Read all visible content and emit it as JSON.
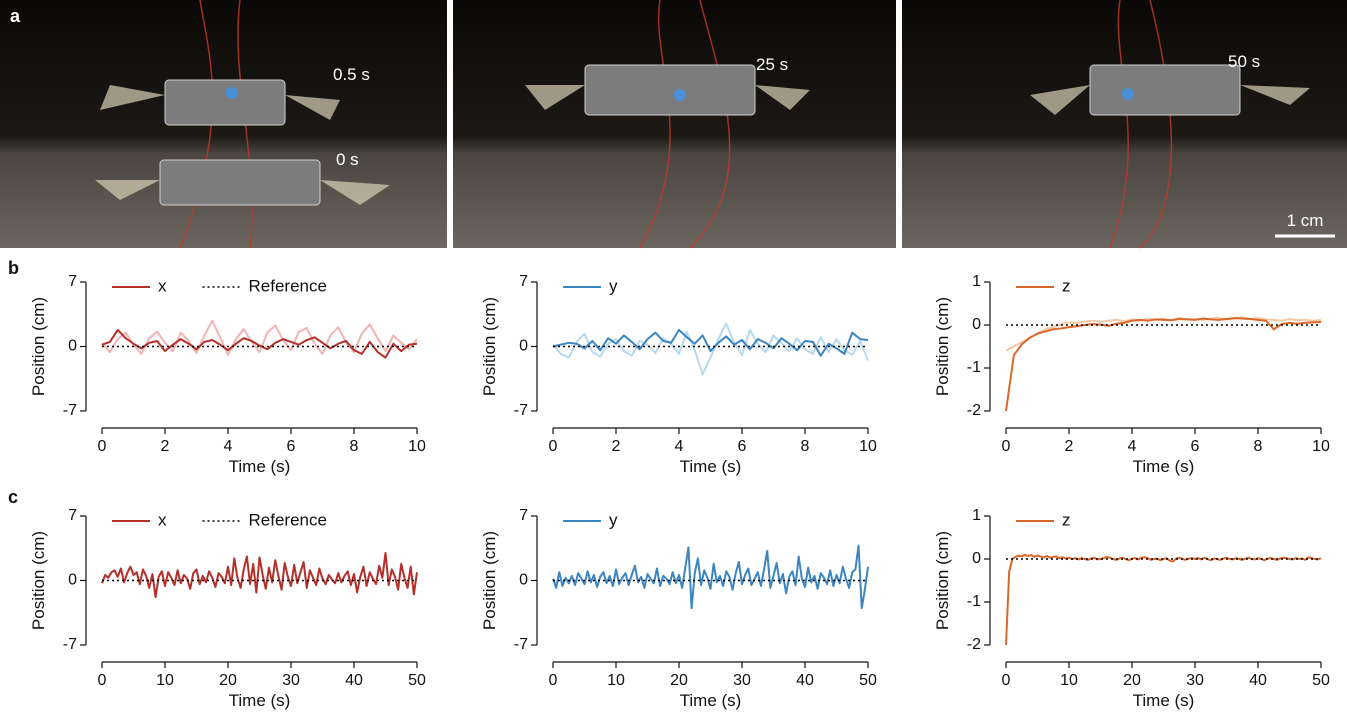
{
  "panel_labels": [
    "a",
    "b",
    "c"
  ],
  "photos": [
    {
      "labels": [
        "0.5 s",
        "0 s"
      ]
    },
    {
      "labels": [
        "25 s"
      ]
    },
    {
      "labels": [
        "50 s"
      ]
    }
  ],
  "scale_bar": "1 cm",
  "chart_data": [
    {
      "type": "line",
      "x_label": "Time (s)",
      "y_label": "Position (cm)",
      "x": [
        0,
        0.25,
        0.5,
        0.75,
        1,
        1.25,
        1.5,
        1.75,
        2,
        2.25,
        2.5,
        2.75,
        3,
        3.25,
        3.5,
        3.75,
        4,
        4.25,
        4.5,
        4.75,
        5,
        5.25,
        5.5,
        5.75,
        6,
        6.25,
        6.5,
        6.75,
        7,
        7.25,
        7.5,
        7.75,
        8,
        8.25,
        8.5,
        8.75,
        9,
        9.25,
        9.5,
        9.75,
        10
      ],
      "xlim": [
        0,
        10
      ],
      "xticks": [
        0,
        2,
        4,
        6,
        8,
        10
      ],
      "ylim": [
        -7,
        7
      ],
      "yticks": [
        -7,
        0,
        7
      ],
      "series": [
        {
          "color": "#f2b3b3",
          "values": [
            0.3,
            -0.6,
            0.8,
            1.5,
            0.2,
            -0.8,
            0.9,
            1.6,
            0.4,
            -0.5,
            1.5,
            0.6,
            -0.7,
            1.2,
            2.8,
            1.0,
            -0.9,
            0.8,
            1.9,
            0.5,
            -0.6,
            1.5,
            2.3,
            0.7,
            -0.4,
            1.6,
            2.0,
            0.3,
            -0.8,
            1.2,
            2.1,
            0.4,
            -0.6,
            1.4,
            2.4,
            0.9,
            -0.5,
            1.2,
            0.4,
            -0.3,
            0.8
          ]
        },
        {
          "name": "x",
          "color": "#b5302a",
          "values": [
            0.2,
            0.5,
            1.8,
            0.9,
            0.3,
            -0.2,
            0.4,
            0.6,
            -0.5,
            0.2,
            0.8,
            0.3,
            -0.3,
            0.5,
            0.7,
            0.2,
            -0.4,
            0.3,
            0.9,
            0.6,
            0.1,
            -0.3,
            0.4,
            0.8,
            0.5,
            0.2,
            0.7,
            1.0,
            0.4,
            -0.2,
            0.3,
            0.6,
            -0.4,
            -0.8,
            0.5,
            -0.6,
            -1.2,
            0.3,
            -0.5,
            0.2,
            0.3
          ]
        },
        {
          "name": "Reference",
          "color": "#000000",
          "linestyle": "dotted",
          "x": [
            0,
            10
          ],
          "values": [
            0,
            0
          ]
        }
      ]
    },
    {
      "type": "line",
      "x_label": "Time (s)",
      "y_label": "Position (cm)",
      "x": [
        0,
        0.25,
        0.5,
        0.75,
        1,
        1.25,
        1.5,
        1.75,
        2,
        2.25,
        2.5,
        2.75,
        3,
        3.25,
        3.5,
        3.75,
        4,
        4.25,
        4.5,
        4.75,
        5,
        5.25,
        5.5,
        5.75,
        6,
        6.25,
        6.5,
        6.75,
        7,
        7.25,
        7.5,
        7.75,
        8,
        8.25,
        8.5,
        8.75,
        9,
        9.25,
        9.5,
        9.75,
        10
      ],
      "xlim": [
        0,
        10
      ],
      "xticks": [
        0,
        2,
        4,
        6,
        8,
        10
      ],
      "ylim": [
        -7,
        7
      ],
      "yticks": [
        -7,
        0,
        7
      ],
      "series": [
        {
          "color": "#b6d9ef",
          "values": [
            0.2,
            -0.8,
            -1.2,
            0.5,
            1.4,
            -0.6,
            -1.1,
            0.3,
            0.8,
            -0.5,
            -1.0,
            0.6,
            0.2,
            -0.7,
            0.9,
            0.3,
            -0.8,
            1.6,
            -0.4,
            -3.0,
            -1.2,
            0.8,
            2.5,
            0.4,
            -0.9,
            1.8,
            0.3,
            -0.6,
            1.2,
            0.4,
            -0.5,
            0.9,
            -0.3,
            -0.8,
            1.0,
            -0.6,
            0.8,
            -0.4,
            -0.9,
            0.6,
            -1.5
          ]
        },
        {
          "name": "y",
          "color": "#3b86c0",
          "values": [
            0,
            0.2,
            0.4,
            0.3,
            -0.2,
            0.6,
            -0.4,
            0.9,
            0.3,
            1.2,
            0.5,
            -0.3,
            0.8,
            1.5,
            0.6,
            0.4,
            1.8,
            1.0,
            0.3,
            1.2,
            -0.5,
            0.4,
            1.1,
            0.2,
            0.7,
            -0.3,
            0.8,
            0.4,
            -0.2,
            0.9,
            0.3,
            -0.4,
            0.6,
            0.5,
            -1.0,
            0.3,
            -0.2,
            -0.8,
            1.5,
            0.8,
            0.7
          ]
        },
        {
          "color": "#000000",
          "linestyle": "dotted",
          "x": [
            0,
            10
          ],
          "values": [
            0,
            0
          ]
        }
      ]
    },
    {
      "type": "line",
      "x_label": "Time (s)",
      "y_label": "Position (cm)",
      "x": [
        0,
        0.25,
        0.5,
        0.75,
        1,
        1.25,
        1.5,
        1.75,
        2,
        2.25,
        2.5,
        2.75,
        3,
        3.25,
        3.5,
        3.75,
        4,
        4.25,
        4.5,
        4.75,
        5,
        5.25,
        5.5,
        5.75,
        6,
        6.25,
        6.5,
        6.75,
        7,
        7.25,
        7.5,
        7.75,
        8,
        8.25,
        8.5,
        8.75,
        9,
        9.25,
        9.5,
        9.75,
        10
      ],
      "xlim": [
        0,
        10
      ],
      "xticks": [
        0,
        2,
        4,
        6,
        8,
        10
      ],
      "ylim": [
        -2,
        1
      ],
      "yticks": [
        -2,
        -1,
        0,
        1
      ],
      "series": [
        {
          "color": "#f5c8a3",
          "values": [
            -0.6,
            -0.5,
            -0.4,
            -0.3,
            -0.2,
            -0.1,
            -0.05,
            0.02,
            0.06,
            0.05,
            0.08,
            0.1,
            0.07,
            0.1,
            0.12,
            0.09,
            0.13,
            0.1,
            0.14,
            0.12,
            0.15,
            0.11,
            0.16,
            0.13,
            0.14,
            0.12,
            0.15,
            0.17,
            0.13,
            0.15,
            0.18,
            0.14,
            0.16,
            0.13,
            0.12,
            0.1,
            0.14,
            0.11,
            0.12,
            0.1,
            0.12
          ]
        },
        {
          "name": "z",
          "color": "#d9682a",
          "values": [
            -2.0,
            -0.7,
            -0.45,
            -0.3,
            -0.2,
            -0.15,
            -0.1,
            -0.08,
            -0.05,
            -0.03,
            0,
            0.02,
            0.01,
            -0.02,
            0.03,
            0.05,
            0.1,
            0.12,
            0.1,
            0.13,
            0.12,
            0.11,
            0.14,
            0.13,
            0.12,
            0.15,
            0.13,
            0.12,
            0.14,
            0.16,
            0.15,
            0.14,
            0.12,
            0.1,
            -0.1,
            0.02,
            0.05,
            0.03,
            0.05,
            0.06,
            0.07
          ]
        },
        {
          "color": "#000000",
          "linestyle": "dotted",
          "x": [
            0,
            10
          ],
          "values": [
            0,
            0
          ]
        }
      ]
    },
    {
      "type": "line",
      "x_label": "Time (s)",
      "y_label": "Position (cm)",
      "x": [
        0,
        0.5,
        1,
        1.5,
        2,
        2.5,
        3,
        3.5,
        4,
        4.5,
        5,
        5.5,
        6,
        6.5,
        7,
        7.5,
        8,
        8.5,
        9,
        9.5,
        10,
        10.5,
        11,
        11.5,
        12,
        12.5,
        13,
        13.5,
        14,
        14.5,
        15,
        15.5,
        16,
        16.5,
        17,
        17.5,
        18,
        18.5,
        19,
        19.5,
        20,
        20.5,
        21,
        21.5,
        22,
        22.5,
        23,
        23.5,
        24,
        24.5,
        25,
        25.5,
        26,
        26.5,
        27,
        27.5,
        28,
        28.5,
        29,
        29.5,
        30,
        30.5,
        31,
        31.5,
        32,
        32.5,
        33,
        33.5,
        34,
        34.5,
        35,
        35.5,
        36,
        36.5,
        37,
        37.5,
        38,
        38.5,
        39,
        39.5,
        40,
        40.5,
        41,
        41.5,
        42,
        42.5,
        43,
        43.5,
        44,
        44.5,
        45,
        45.5,
        46,
        46.5,
        47,
        47.5,
        48,
        48.5,
        49,
        49.5,
        50
      ],
      "xlim": [
        0,
        50
      ],
      "xticks": [
        0,
        10,
        20,
        30,
        40,
        50
      ],
      "ylim": [
        -7,
        7
      ],
      "yticks": [
        -7,
        0,
        7
      ],
      "series": [
        {
          "name": "x",
          "color": "#b5302a",
          "values": [
            -0.3,
            0.6,
            0.3,
            0.9,
            1.1,
            0.4,
            1.3,
            -0.2,
            0.8,
            1.5,
            0.6,
            0.9,
            -0.4,
            1.2,
            0.5,
            -0.8,
            0.7,
            -1.8,
            0.4,
            1.0,
            -0.6,
            0.9,
            0.3,
            -0.5,
            1.1,
            -0.3,
            0.6,
            0.2,
            -0.9,
            0.8,
            1.2,
            -0.4,
            0.5,
            -0.2,
            1.0,
            0.3,
            -0.7,
            0.8,
            0.4,
            -0.3,
            1.5,
            -0.5,
            2.4,
            0.3,
            -0.8,
            1.2,
            2.6,
            -0.4,
            1.8,
            -1.3,
            2.5,
            0.6,
            -0.9,
            1.4,
            -0.2,
            2.2,
            0.5,
            -1.0,
            1.9,
            0.4,
            -0.6,
            1.7,
            -0.3,
            0.9,
            2.0,
            -0.8,
            1.1,
            0.3,
            -0.5,
            1.3,
            0.2,
            -0.4,
            0.6,
            0.1,
            -0.3,
            0.8,
            -0.2,
            0.5,
            1.0,
            -0.5,
            0.7,
            -1.3,
            0.4,
            1.5,
            -0.6,
            0.9,
            0.2,
            -0.4,
            1.6,
            0.3,
            3.0,
            -0.5,
            1.2,
            0.4,
            -1.0,
            1.8,
            0.3,
            -0.8,
            1.5,
            -1.5,
            0.9
          ]
        },
        {
          "name": "Reference",
          "color": "#000000",
          "linestyle": "dotted",
          "x": [
            0,
            50
          ],
          "values": [
            0,
            0
          ]
        }
      ]
    },
    {
      "type": "line",
      "x_label": "Time (s)",
      "y_label": "Position (cm)",
      "x": [
        0,
        0.5,
        1,
        1.5,
        2,
        2.5,
        3,
        3.5,
        4,
        4.5,
        5,
        5.5,
        6,
        6.5,
        7,
        7.5,
        8,
        8.5,
        9,
        9.5,
        10,
        10.5,
        11,
        11.5,
        12,
        12.5,
        13,
        13.5,
        14,
        14.5,
        15,
        15.5,
        16,
        16.5,
        17,
        17.5,
        18,
        18.5,
        19,
        19.5,
        20,
        20.5,
        21,
        21.5,
        22,
        22.5,
        23,
        23.5,
        24,
        24.5,
        25,
        25.5,
        26,
        26.5,
        27,
        27.5,
        28,
        28.5,
        29,
        29.5,
        30,
        30.5,
        31,
        31.5,
        32,
        32.5,
        33,
        33.5,
        34,
        34.5,
        35,
        35.5,
        36,
        36.5,
        37,
        37.5,
        38,
        38.5,
        39,
        39.5,
        40,
        40.5,
        41,
        41.5,
        42,
        42.5,
        43,
        43.5,
        44,
        44.5,
        45,
        45.5,
        46,
        46.5,
        47,
        47.5,
        48,
        48.5,
        49,
        49.5,
        50
      ],
      "xlim": [
        0,
        50
      ],
      "xticks": [
        0,
        10,
        20,
        30,
        40,
        50
      ],
      "ylim": [
        -7,
        7
      ],
      "yticks": [
        -7,
        0,
        7
      ],
      "series": [
        {
          "name": "y",
          "color": "#3b86c0",
          "values": [
            0.2,
            -0.8,
            0.9,
            -0.6,
            0.3,
            -0.3,
            0.5,
            -0.5,
            0.8,
            0.2,
            -0.4,
            1.0,
            -0.2,
            0.6,
            -0.7,
            0.4,
            0.9,
            -0.3,
            0.5,
            -0.6,
            1.2,
            -0.4,
            0.3,
            0.8,
            -0.5,
            0.6,
            1.6,
            -0.2,
            0.4,
            -0.8,
            0.7,
            0.2,
            -0.3,
            1.3,
            -0.6,
            0.5,
            0.2,
            -0.4,
            0.9,
            -0.3,
            0.6,
            -0.8,
            1.4,
            3.6,
            -3.0,
            0.8,
            2.4,
            -0.5,
            1.1,
            0.3,
            -0.9,
            1.8,
            -0.2,
            0.5,
            -0.6,
            1.0,
            0.4,
            -1.0,
            0.8,
            2.0,
            -0.4,
            0.6,
            1.3,
            -0.5,
            0.2,
            0.9,
            -0.6,
            1.2,
            3.2,
            -0.8,
            0.5,
            1.9,
            -0.3,
            0.7,
            -1.4,
            0.4,
            1.0,
            -0.5,
            2.6,
            0.2,
            -0.7,
            1.4,
            -0.2,
            0.5,
            -0.9,
            0.8,
            0.3,
            -0.4,
            1.1,
            -0.6,
            0.6,
            -0.3,
            1.5,
            0.2,
            -0.8,
            0.9,
            1.2,
            3.8,
            -3.0,
            -1.0,
            1.5
          ]
        },
        {
          "color": "#000000",
          "linestyle": "dotted",
          "x": [
            0,
            50
          ],
          "values": [
            0,
            0
          ]
        }
      ]
    },
    {
      "type": "line",
      "x_label": "Time (s)",
      "y_label": "Position (cm)",
      "x": [
        0,
        0.5,
        1,
        1.5,
        2,
        2.5,
        3,
        3.5,
        4,
        4.5,
        5,
        5.5,
        6,
        6.5,
        7,
        7.5,
        8,
        8.5,
        9,
        9.5,
        10,
        10.5,
        11,
        11.5,
        12,
        12.5,
        13,
        13.5,
        14,
        14.5,
        15,
        15.5,
        16,
        16.5,
        17,
        17.5,
        18,
        18.5,
        19,
        19.5,
        20,
        20.5,
        21,
        21.5,
        22,
        22.5,
        23,
        23.5,
        24,
        24.5,
        25,
        25.5,
        26,
        26.5,
        27,
        27.5,
        28,
        28.5,
        29,
        29.5,
        30,
        30.5,
        31,
        31.5,
        32,
        32.5,
        33,
        33.5,
        34,
        34.5,
        35,
        35.5,
        36,
        36.5,
        37,
        37.5,
        38,
        38.5,
        39,
        39.5,
        40,
        40.5,
        41,
        41.5,
        42,
        42.5,
        43,
        43.5,
        44,
        44.5,
        45,
        45.5,
        46,
        46.5,
        47,
        47.5,
        48,
        48.5,
        49,
        49.5,
        50
      ],
      "xlim": [
        0,
        50
      ],
      "xticks": [
        0,
        10,
        20,
        30,
        40,
        50
      ],
      "ylim": [
        -2,
        1
      ],
      "yticks": [
        -2,
        -1,
        0,
        1
      ],
      "series": [
        {
          "name": "z",
          "color": "#d9682a",
          "values": [
            -2.0,
            -0.3,
            0.0,
            0.05,
            0.08,
            0.06,
            0.1,
            0.07,
            0.09,
            0.05,
            0.08,
            0.06,
            0.04,
            0.07,
            0.03,
            0.05,
            0.06,
            0.02,
            0.04,
            0.01,
            0.03,
            0.0,
            0.02,
            -0.01,
            0.02,
            0.0,
            -0.02,
            0.01,
            0.03,
            -0.01,
            0.0,
            0.02,
            0.05,
            0.03,
            0.0,
            -0.02,
            0.01,
            0.03,
            0.0,
            -0.03,
            0.01,
            0.02,
            -0.01,
            0.03,
            0.04,
            0.02,
            -0.02,
            0.0,
            0.01,
            -0.03,
            0.0,
            0.02,
            -0.04,
            -0.06,
            0.01,
            0.03,
            0.0,
            -0.02,
            0.01,
            0.02,
            0.0,
            0.02,
            -0.01,
            0.03,
            0.0,
            -0.03,
            0.01,
            0.0,
            -0.02,
            0.01,
            0.03,
            0.0,
            -0.01,
            0.02,
            0.0,
            -0.02,
            0.01,
            0.03,
            0.0,
            -0.01,
            0.02,
            0.0,
            -0.03,
            0.01,
            0.02,
            0.0,
            -0.02,
            0.01,
            0.03,
            0.02,
            0.0,
            -0.01,
            0.02,
            0.0,
            0.01,
            -0.02,
            0.04,
            0.02,
            0.0,
            -0.01,
            0.02
          ]
        },
        {
          "color": "#000000",
          "linestyle": "dotted",
          "x": [
            0,
            50
          ],
          "values": [
            0,
            0
          ]
        }
      ]
    }
  ]
}
